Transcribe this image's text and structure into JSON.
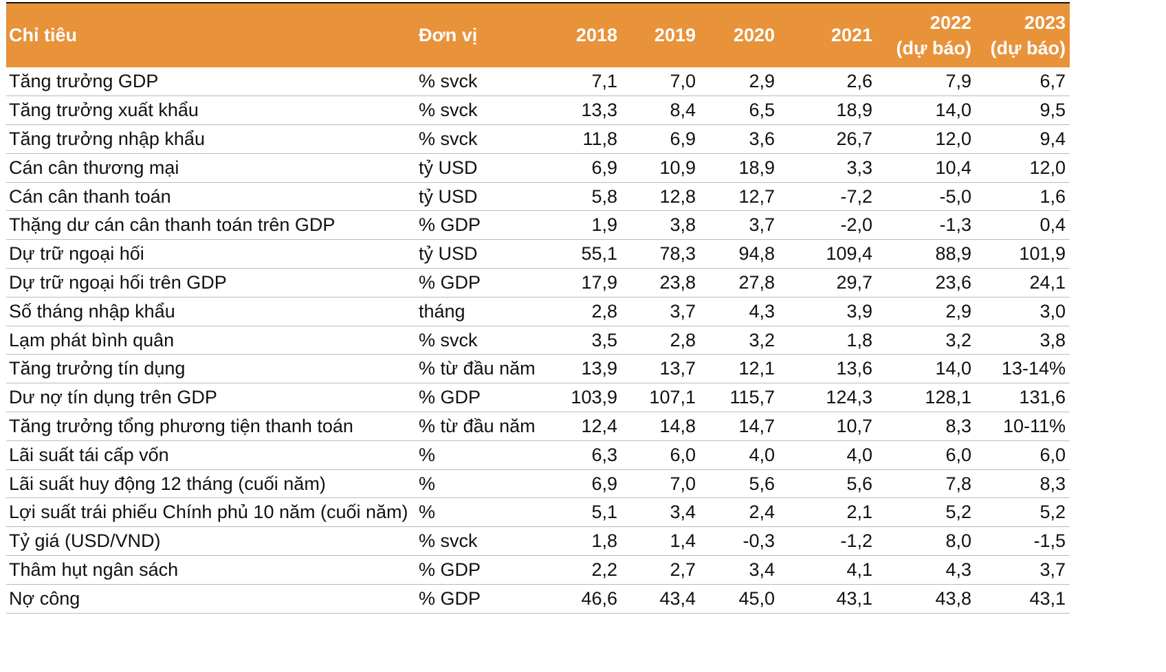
{
  "table": {
    "headers": {
      "indicator": "Chỉ tiêu",
      "unit": "Đơn vị",
      "years": [
        {
          "year": "2018",
          "note": ""
        },
        {
          "year": "2019",
          "note": ""
        },
        {
          "year": "2020",
          "note": ""
        },
        {
          "year": "2021",
          "note": ""
        },
        {
          "year": "2022",
          "note": "(dự báo)"
        },
        {
          "year": "2023",
          "note": "(dự báo)"
        }
      ]
    },
    "rows": [
      {
        "name": "Tăng trưởng GDP",
        "unit": "% svck",
        "values": [
          "7,1",
          "7,0",
          "2,9",
          "2,6",
          "7,9",
          "6,7"
        ]
      },
      {
        "name": "Tăng trưởng xuất khẩu",
        "unit": "% svck",
        "values": [
          "13,3",
          "8,4",
          "6,5",
          "18,9",
          "14,0",
          "9,5"
        ]
      },
      {
        "name": "Tăng trưởng nhập khẩu",
        "unit": "% svck",
        "values": [
          "11,8",
          "6,9",
          "3,6",
          "26,7",
          "12,0",
          "9,4"
        ]
      },
      {
        "name": "Cán cân thương mại",
        "unit": "tỷ USD",
        "values": [
          "6,9",
          "10,9",
          "18,9",
          "3,3",
          "10,4",
          "12,0"
        ]
      },
      {
        "name": "Cán cân thanh toán",
        "unit": "tỷ USD",
        "values": [
          "5,8",
          "12,8",
          "12,7",
          "-7,2",
          "-5,0",
          "1,6"
        ]
      },
      {
        "name": "Thặng dư cán cân thanh toán trên GDP",
        "unit": "% GDP",
        "values": [
          "1,9",
          "3,8",
          "3,7",
          "-2,0",
          "-1,3",
          "0,4"
        ]
      },
      {
        "name": "Dự trữ ngoại hối",
        "unit": "tỷ USD",
        "values": [
          "55,1",
          "78,3",
          "94,8",
          "109,4",
          "88,9",
          "101,9"
        ]
      },
      {
        "name": "Dự trữ ngoại hối trên GDP",
        "unit": "% GDP",
        "values": [
          "17,9",
          "23,8",
          "27,8",
          "29,7",
          "23,6",
          "24,1"
        ]
      },
      {
        "name": "Số tháng nhập khẩu",
        "unit": "tháng",
        "values": [
          "2,8",
          "3,7",
          "4,3",
          "3,9",
          "2,9",
          "3,0"
        ]
      },
      {
        "name": "Lạm phát bình quân",
        "unit": "% svck",
        "values": [
          "3,5",
          "2,8",
          "3,2",
          "1,8",
          "3,2",
          "3,8"
        ]
      },
      {
        "name": "Tăng trưởng tín dụng",
        "unit": "% từ đầu năm",
        "values": [
          "13,9",
          "13,7",
          "12,1",
          "13,6",
          "14,0",
          "13-14%"
        ]
      },
      {
        "name": "Dư nợ tín dụng trên GDP",
        "unit": "% GDP",
        "values": [
          "103,9",
          "107,1",
          "115,7",
          "124,3",
          "128,1",
          "131,6"
        ]
      },
      {
        "name": "Tăng trưởng tổng phương tiện thanh toán",
        "unit": "% từ đầu năm",
        "values": [
          "12,4",
          "14,8",
          "14,7",
          "10,7",
          "8,3",
          "10-11%"
        ]
      },
      {
        "name": "Lãi suất tái cấp vốn",
        "unit": "%",
        "values": [
          "6,3",
          "6,0",
          "4,0",
          "4,0",
          "6,0",
          "6,0"
        ]
      },
      {
        "name": "Lãi suất huy động 12 tháng (cuối năm)",
        "unit": "%",
        "values": [
          "6,9",
          "7,0",
          "5,6",
          "5,6",
          "7,8",
          "8,3"
        ]
      },
      {
        "name": "Lợi suất trái phiếu Chính phủ 10 năm (cuối năm)",
        "unit": "%",
        "values": [
          "5,1",
          "3,4",
          "2,4",
          "2,1",
          "5,2",
          "5,2"
        ]
      },
      {
        "name": "Tỷ giá (USD/VND)",
        "unit": "% svck",
        "values": [
          "1,8",
          "1,4",
          "-0,3",
          "-1,2",
          "8,0",
          "-1,5"
        ]
      },
      {
        "name": "Thâm hụt ngân sách",
        "unit": "% GDP",
        "values": [
          "2,2",
          "2,7",
          "3,4",
          "4,1",
          "4,3",
          "3,7"
        ]
      },
      {
        "name": "Nợ công",
        "unit": "% GDP",
        "values": [
          "46,6",
          "43,4",
          "45,0",
          "43,1",
          "43,8",
          "43,1"
        ]
      }
    ]
  }
}
